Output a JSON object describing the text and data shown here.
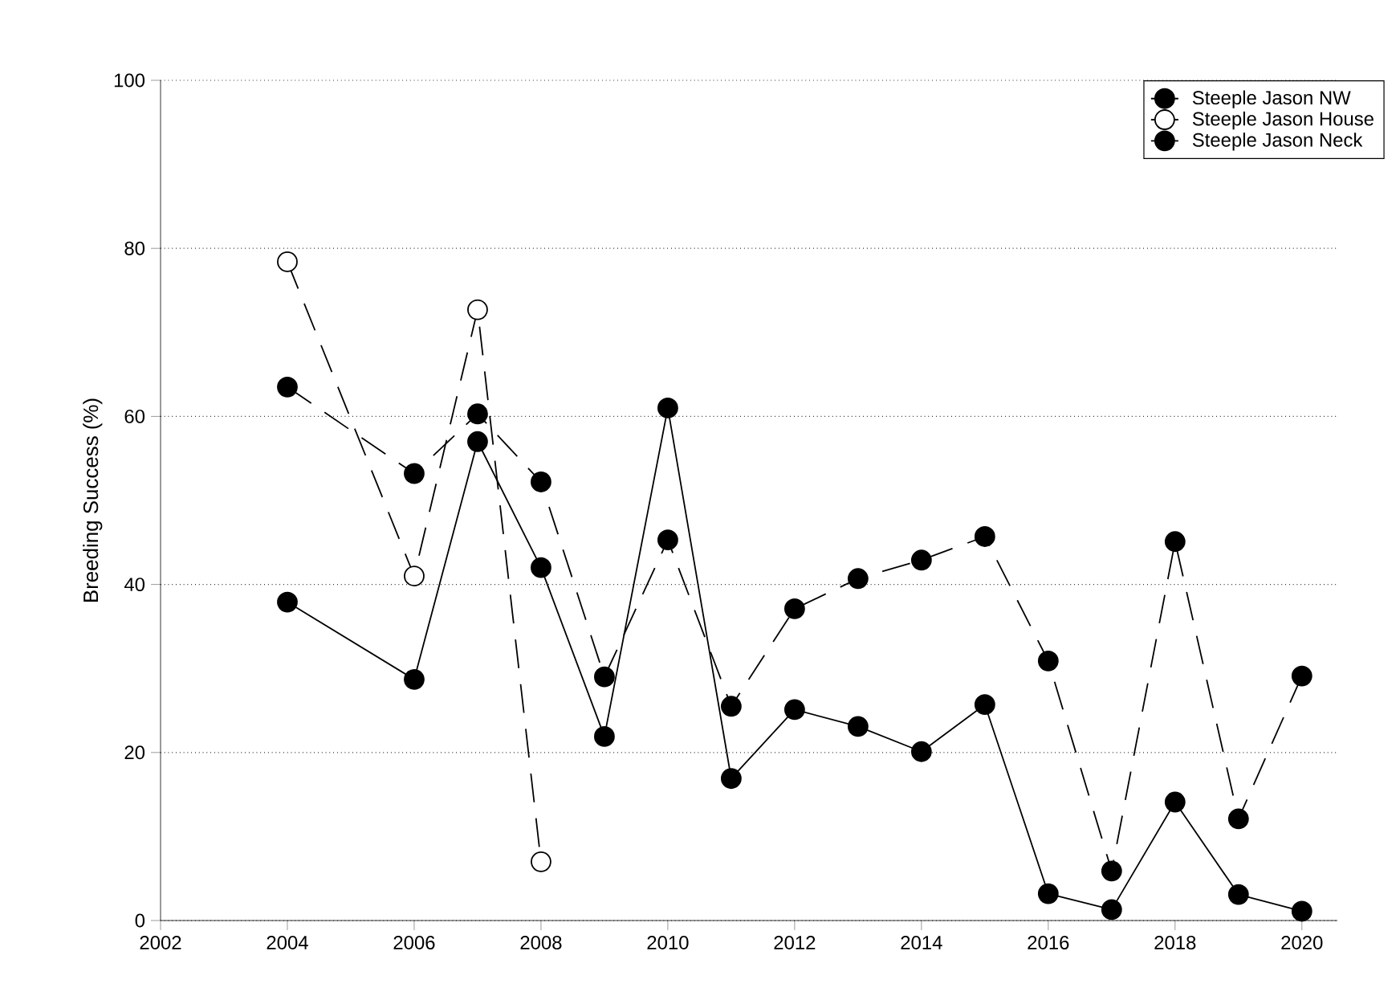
{
  "chart_data": {
    "type": "line",
    "ylabel": "Breeding Success (%)",
    "xlim": [
      2002,
      2020.56
    ],
    "ylim": [
      0,
      100
    ],
    "xticks": [
      2002,
      2004,
      2006,
      2008,
      2010,
      2012,
      2014,
      2016,
      2018,
      2020
    ],
    "yticks": [
      0,
      20,
      40,
      60,
      80,
      100
    ],
    "grid": "y",
    "legend": "top right",
    "marker": "circle",
    "series": [
      {
        "name": "Steeple Jason NW",
        "color": "#000000",
        "line_style": "solid",
        "x": [
          2004,
          2006,
          2007,
          2008,
          2009,
          2010,
          2011,
          2012,
          2013,
          2014,
          2015,
          2016,
          2017,
          2018,
          2019,
          2020
        ],
        "values": [
          37.9,
          28.7,
          57.0,
          42.0,
          21.9,
          61.0,
          16.9,
          25.1,
          23.1,
          20.1,
          25.7,
          3.2,
          1.3,
          14.1,
          3.1,
          1.1
        ]
      },
      {
        "name": "Steeple Jason House",
        "color": "#ffffff",
        "line_style": "dashed",
        "x": [
          2004,
          2006,
          2007,
          2008
        ],
        "values": [
          78.4,
          41.0,
          72.7,
          7.0
        ]
      },
      {
        "name": "Steeple Jason Neck",
        "color": "#000000",
        "line_style": "dashed",
        "x": [
          2004,
          2006,
          2007,
          2008,
          2009,
          2010,
          2011,
          2012,
          2013,
          2014,
          2015,
          2016,
          2017,
          2018,
          2019,
          2020
        ],
        "values": [
          63.5,
          53.2,
          60.3,
          52.2,
          29.0,
          45.3,
          25.5,
          37.1,
          40.7,
          42.9,
          45.7,
          30.9,
          5.9,
          45.1,
          12.1,
          29.1
        ]
      }
    ]
  }
}
